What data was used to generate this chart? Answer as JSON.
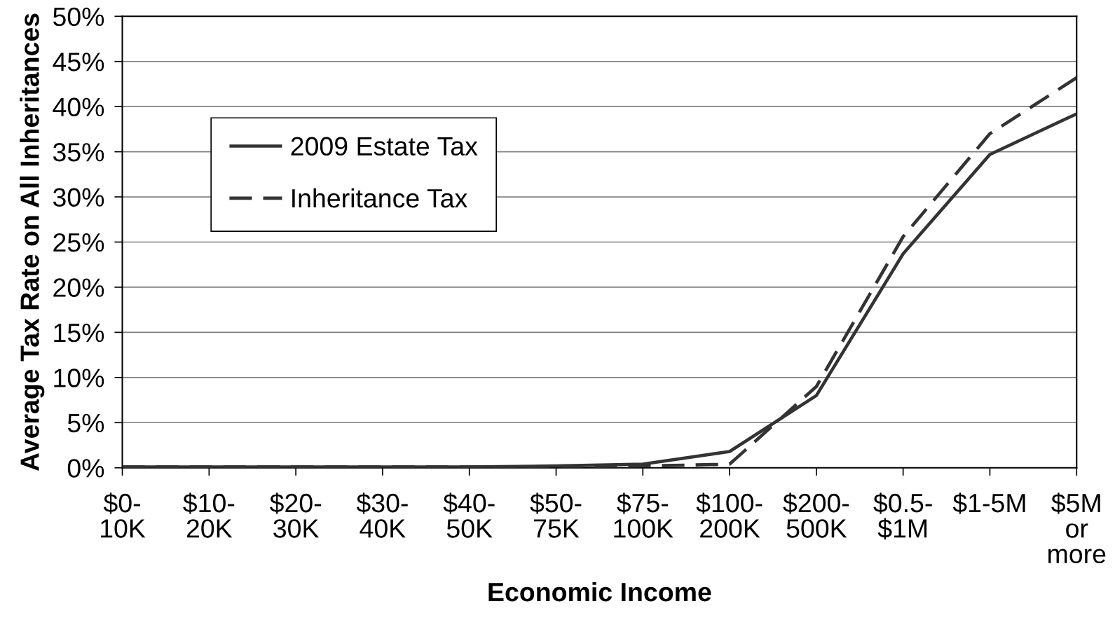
{
  "chart_data": {
    "type": "line",
    "xlabel": "Economic Income",
    "ylabel": "Average Tax Rate on All Inheritances",
    "categories": [
      "$0-\n10K",
      "$10-\n20K",
      "$20-\n30K",
      "$30-\n40K",
      "$40-\n50K",
      "$50-\n75K",
      "$75-\n100K",
      "$100-\n200K",
      "$200-\n500K",
      "$0.5-\n$1M",
      "$1-5M",
      "$5M\nor\nmore"
    ],
    "ylim": [
      0,
      50
    ],
    "yticks": [
      {
        "value": 0,
        "label": "0%"
      },
      {
        "value": 5,
        "label": "5%"
      },
      {
        "value": 10,
        "label": "10%"
      },
      {
        "value": 15,
        "label": "15%"
      },
      {
        "value": 20,
        "label": "20%"
      },
      {
        "value": 25,
        "label": "25%"
      },
      {
        "value": 30,
        "label": "30%"
      },
      {
        "value": 35,
        "label": "35%"
      },
      {
        "value": 40,
        "label": "40%"
      },
      {
        "value": 45,
        "label": "45%"
      },
      {
        "value": 50,
        "label": "50%"
      }
    ],
    "grid": "y",
    "legend": "top left",
    "series": [
      {
        "name": "2009 Estate Tax",
        "color": "#333333",
        "line_style": "solid",
        "values": [
          0.1,
          0.1,
          0.1,
          0.1,
          0.1,
          0.2,
          0.4,
          1.8,
          8.0,
          23.7,
          34.7,
          39.2
        ]
      },
      {
        "name": "Inheritance Tax",
        "color": "#333333",
        "line_style": "dashed",
        "values": [
          0.1,
          0.1,
          0.1,
          0.1,
          0.1,
          0.1,
          0.2,
          0.4,
          9.0,
          25.6,
          37.0,
          43.2
        ]
      }
    ]
  }
}
